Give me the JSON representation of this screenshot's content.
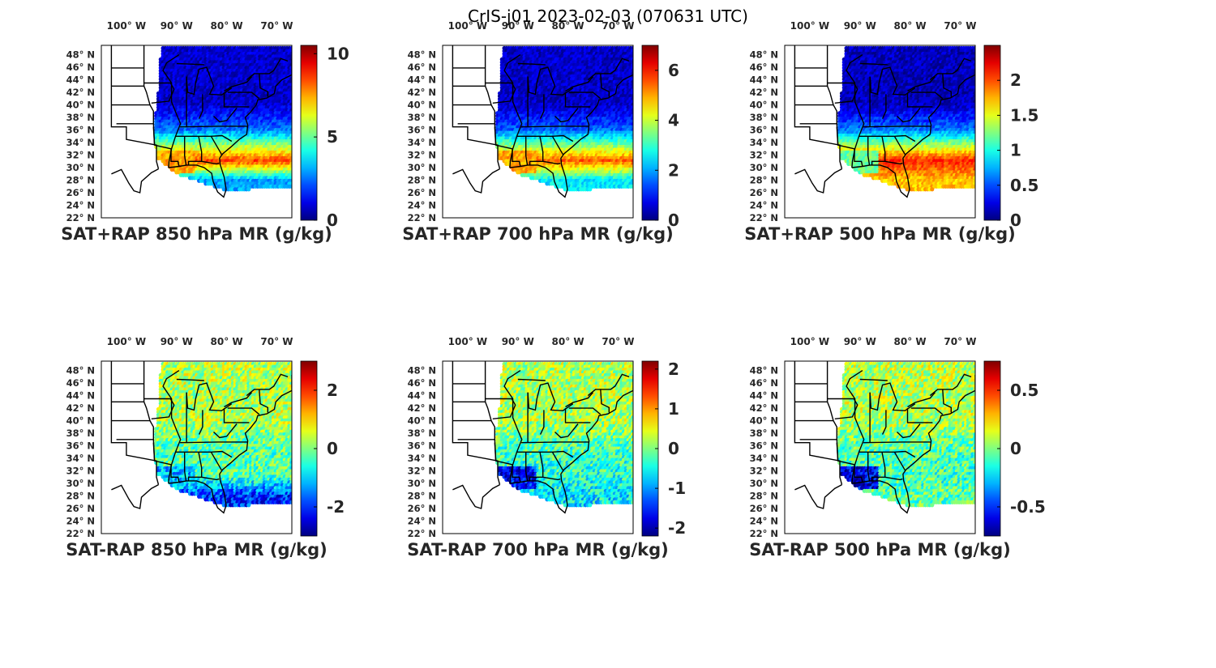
{
  "figure": {
    "title": "CrIS-j01 2023-02-03 (070631 UTC)"
  },
  "map": {
    "lon_ticks": [
      "100° W",
      "90° W",
      "80° W",
      "70° W"
    ],
    "lat_ticks": [
      "48° N",
      "46° N",
      "44° N",
      "42° N",
      "40° N",
      "38° N",
      "36° N",
      "34° N",
      "32° N",
      "30° N",
      "28° N",
      "26° N",
      "24° N",
      "22° N"
    ]
  },
  "colors": {
    "colormap": "jet",
    "axes_text": "#262626",
    "boundaries": "#000000"
  },
  "chart_data": [
    {
      "type": "scatter",
      "title": "SAT+RAP 850 hPa MR (g/kg)",
      "colorbar": {
        "ticks": [
          0,
          5,
          10
        ],
        "tick_labels": [
          "0",
          "5",
          "10"
        ],
        "clim": [
          0,
          10.5
        ]
      },
      "region_values": {
        "north": 0.8,
        "central": 2.5,
        "south_band": 8.5,
        "ocean_south": 3.0,
        "gulf_coast": 7.5
      }
    },
    {
      "type": "scatter",
      "title": "SAT+RAP 700 hPa MR (g/kg)",
      "colorbar": {
        "ticks": [
          0,
          2,
          4,
          6
        ],
        "tick_labels": [
          "0",
          "2",
          "4",
          "6"
        ],
        "clim": [
          0,
          7
        ]
      },
      "region_values": {
        "north": 0.5,
        "central": 1.5,
        "south_band": 5.5,
        "ocean_south": 2.5,
        "gulf_coast": 5.0
      }
    },
    {
      "type": "scatter",
      "title": "SAT+RAP 500 hPa MR (g/kg)",
      "colorbar": {
        "ticks": [
          0,
          0.5,
          1,
          1.5,
          2
        ],
        "tick_labels": [
          "0",
          "0.5",
          "1",
          "1.5",
          "2"
        ],
        "clim": [
          0,
          2.5
        ]
      },
      "region_values": {
        "north": 0.15,
        "central": 0.6,
        "south_band": 2.1,
        "ocean_south": 1.7,
        "gulf_coast": 1.2
      }
    },
    {
      "type": "scatter",
      "title": "SAT-RAP 850 hPa MR (g/kg)",
      "colorbar": {
        "ticks": [
          -2,
          0,
          2
        ],
        "tick_labels": [
          "-2",
          "0",
          "2"
        ],
        "clim": [
          -3,
          3
        ]
      },
      "region_values": {
        "north": 0.3,
        "central": -0.2,
        "south_band": -0.3,
        "ocean_south": -2.0,
        "gulf_coast": -1.2
      }
    },
    {
      "type": "scatter",
      "title": "SAT-RAP 700 hPa MR (g/kg)",
      "colorbar": {
        "ticks": [
          -2,
          -1,
          0,
          1,
          2
        ],
        "tick_labels": [
          "-2",
          "-1",
          "0",
          "1",
          "2"
        ],
        "clim": [
          -2.2,
          2.2
        ]
      },
      "region_values": {
        "north": 0.2,
        "central": -0.2,
        "south_band": -0.4,
        "ocean_south": -0.6,
        "gulf_coast": -1.6
      }
    },
    {
      "type": "scatter",
      "title": "SAT-RAP 500 hPa MR (g/kg)",
      "colorbar": {
        "ticks": [
          -0.5,
          0,
          0.5
        ],
        "tick_labels": [
          "-0.5",
          "0",
          "0.5"
        ],
        "clim": [
          -0.75,
          0.75
        ]
      },
      "region_values": {
        "north": 0.08,
        "central": -0.05,
        "south_band": -0.1,
        "ocean_south": -0.05,
        "gulf_coast": -0.6
      }
    }
  ]
}
